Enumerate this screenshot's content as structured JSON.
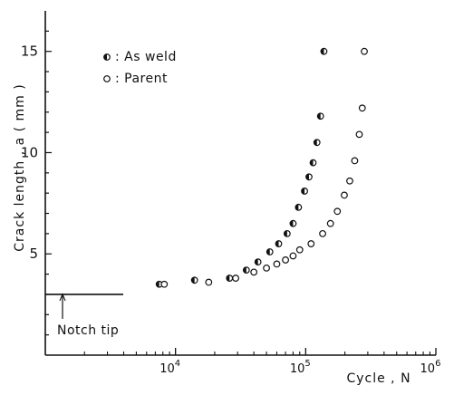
{
  "chart_data": {
    "type": "scatter",
    "title": "",
    "xlabel": "Cycle , N",
    "ylabel": "Crack  length , a ( mm )",
    "x_scale": "log",
    "xlim": [
      1000,
      1000000
    ],
    "ylim": [
      0,
      17
    ],
    "x_ticks": [
      {
        "value": 10000,
        "base": "10",
        "exp": "4"
      },
      {
        "value": 100000,
        "base": "10",
        "exp": "5"
      },
      {
        "value": 1000000,
        "base": "10",
        "exp": "6"
      }
    ],
    "y_ticks": [
      5,
      10,
      15
    ],
    "legend_position": "top-left",
    "series": [
      {
        "name": ": As  weld",
        "marker": "half-filled-circle",
        "points": [
          [
            7500,
            3.5
          ],
          [
            14000,
            3.7
          ],
          [
            26000,
            3.8
          ],
          [
            35000,
            4.2
          ],
          [
            43000,
            4.6
          ],
          [
            53000,
            5.1
          ],
          [
            62000,
            5.5
          ],
          [
            72000,
            6.0
          ],
          [
            80000,
            6.5
          ],
          [
            88000,
            7.3
          ],
          [
            98000,
            8.1
          ],
          [
            106000,
            8.8
          ],
          [
            114000,
            9.5
          ],
          [
            122000,
            10.5
          ],
          [
            130000,
            11.8
          ],
          [
            138000,
            15.0
          ]
        ]
      },
      {
        "name": ": Parent",
        "marker": "open-circle",
        "points": [
          [
            8200,
            3.5
          ],
          [
            18000,
            3.6
          ],
          [
            29000,
            3.8
          ],
          [
            40000,
            4.1
          ],
          [
            50000,
            4.3
          ],
          [
            60000,
            4.5
          ],
          [
            70000,
            4.7
          ],
          [
            80000,
            4.9
          ],
          [
            90000,
            5.2
          ],
          [
            110000,
            5.5
          ],
          [
            135000,
            6.0
          ],
          [
            155000,
            6.5
          ],
          [
            175000,
            7.1
          ],
          [
            198000,
            7.9
          ],
          [
            218000,
            8.6
          ],
          [
            238000,
            9.6
          ],
          [
            258000,
            10.9
          ],
          [
            272000,
            12.2
          ],
          [
            282000,
            15.0
          ]
        ]
      }
    ],
    "annotations": [
      {
        "text": "Notch  tip",
        "y": 3.0
      }
    ]
  }
}
